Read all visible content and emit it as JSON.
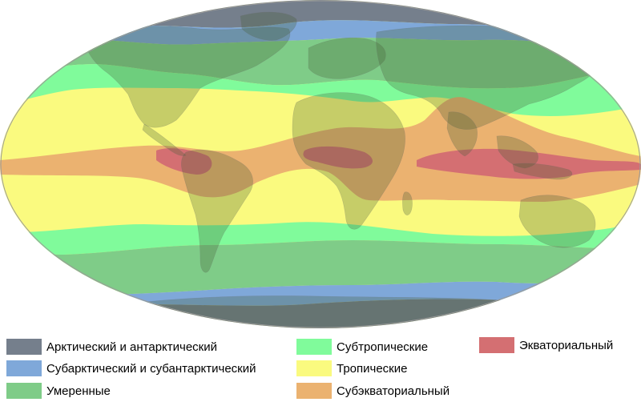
{
  "map": {
    "zones": [
      {
        "id": "arctic",
        "name": "Арктический и антарктический",
        "color": "#757f8c"
      },
      {
        "id": "subarctic",
        "name": "Субарктический и субантарктический",
        "color": "#7fa8d9"
      },
      {
        "id": "temperate",
        "name": "Умеренные",
        "color": "#7fcc88"
      },
      {
        "id": "subtropical",
        "name": "Субтропические",
        "color": "#80fb9b"
      },
      {
        "id": "tropical",
        "name": "Тропические",
        "color": "#fafa7f"
      },
      {
        "id": "subequatorial",
        "name": "Субэкваториальный",
        "color": "#ebb270"
      },
      {
        "id": "equatorial",
        "name": "Экваториальный",
        "color": "#d46f72"
      }
    ],
    "colors": {
      "land_overlay": "#405a30",
      "ocean_background": "#ffffff",
      "border": "#6b6b6b"
    }
  }
}
